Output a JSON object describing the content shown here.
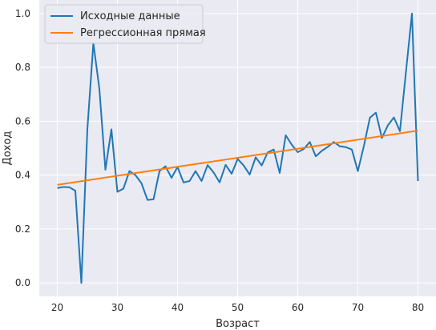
{
  "chart_data": {
    "type": "line",
    "xlabel": "Возраст",
    "ylabel": "Доход",
    "xlim": [
      17.0,
      83.0
    ],
    "ylim": [
      -0.05,
      1.05
    ],
    "xticks": [
      "20",
      "30",
      "40",
      "50",
      "60",
      "70",
      "80"
    ],
    "yticks": [
      "0.0",
      "0.2",
      "0.4",
      "0.6",
      "0.8",
      "1.0"
    ],
    "grid": true,
    "background": "#eaeaf2",
    "legend_position": "upper-left",
    "series": [
      {
        "name": "Исходные данные",
        "color": "#1f77b4",
        "x": [
          20,
          21,
          22,
          23,
          24,
          25,
          26,
          27,
          28,
          29,
          30,
          31,
          32,
          33,
          34,
          35,
          36,
          37,
          38,
          39,
          40,
          41,
          42,
          43,
          44,
          45,
          46,
          47,
          48,
          49,
          50,
          51,
          52,
          53,
          54,
          55,
          56,
          57,
          58,
          59,
          60,
          61,
          62,
          63,
          64,
          65,
          66,
          67,
          68,
          69,
          70,
          71,
          72,
          73,
          74,
          75,
          76,
          77,
          78,
          79,
          80
        ],
        "y": [
          0.352,
          0.356,
          0.355,
          0.342,
          0.0,
          0.57,
          0.89,
          0.72,
          0.42,
          0.57,
          0.338,
          0.35,
          0.415,
          0.4,
          0.37,
          0.308,
          0.31,
          0.415,
          0.433,
          0.39,
          0.43,
          0.373,
          0.378,
          0.415,
          0.378,
          0.437,
          0.41,
          0.373,
          0.438,
          0.405,
          0.46,
          0.436,
          0.402,
          0.466,
          0.436,
          0.484,
          0.495,
          0.408,
          0.548,
          0.513,
          0.485,
          0.497,
          0.523,
          0.47,
          0.49,
          0.505,
          0.523,
          0.507,
          0.504,
          0.495,
          0.415,
          0.508,
          0.613,
          0.632,
          0.538,
          0.585,
          0.614,
          0.563,
          0.783,
          1.0,
          0.378
        ]
      },
      {
        "name": "Регрессионная прямая",
        "color": "#ff7f0e",
        "x": [
          20,
          80
        ],
        "y": [
          0.364,
          0.565
        ]
      }
    ]
  }
}
